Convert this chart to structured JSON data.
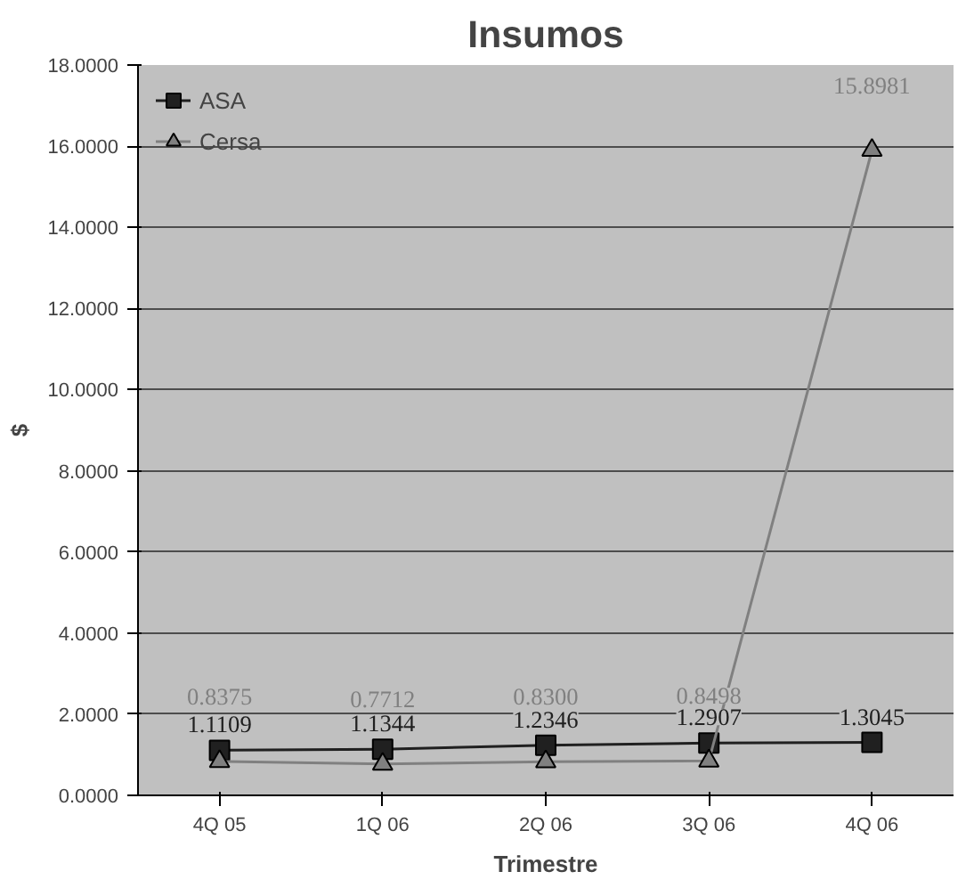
{
  "chart_data": {
    "type": "line",
    "title": "Insumos",
    "xlabel": "Trimestre",
    "ylabel": "$",
    "categories": [
      "4Q 05",
      "1Q 06",
      "2Q 06",
      "3Q 06",
      "4Q 06"
    ],
    "series": [
      {
        "name": "ASA",
        "color": "#202020",
        "marker": "square",
        "values": [
          1.1109,
          1.1344,
          1.2346,
          1.2907,
          1.3045
        ],
        "value_labels": [
          "1.1109",
          "1.1344",
          "1.2346",
          "1.2907",
          "1.3045"
        ]
      },
      {
        "name": "Cersa",
        "color": "#808080",
        "marker": "triangle",
        "values": [
          0.8375,
          0.7712,
          0.83,
          0.8498,
          15.8981
        ],
        "value_labels": [
          "0.8375",
          "0.7712",
          "0.8300",
          "0.8498",
          "15.8981"
        ]
      }
    ],
    "ylim": [
      0,
      18
    ],
    "yticks": [
      {
        "value": 0,
        "label": "0.0000"
      },
      {
        "value": 2,
        "label": "2.0000"
      },
      {
        "value": 4,
        "label": "4.0000"
      },
      {
        "value": 6,
        "label": "6.0000"
      },
      {
        "value": 8,
        "label": "8.0000"
      },
      {
        "value": 10,
        "label": "10.0000"
      },
      {
        "value": 12,
        "label": "12.0000"
      },
      {
        "value": 14,
        "label": "14.0000"
      },
      {
        "value": 16,
        "label": "16.0000"
      },
      {
        "value": 18,
        "label": "18.0000"
      }
    ],
    "grid": "y",
    "legend": "top left"
  }
}
